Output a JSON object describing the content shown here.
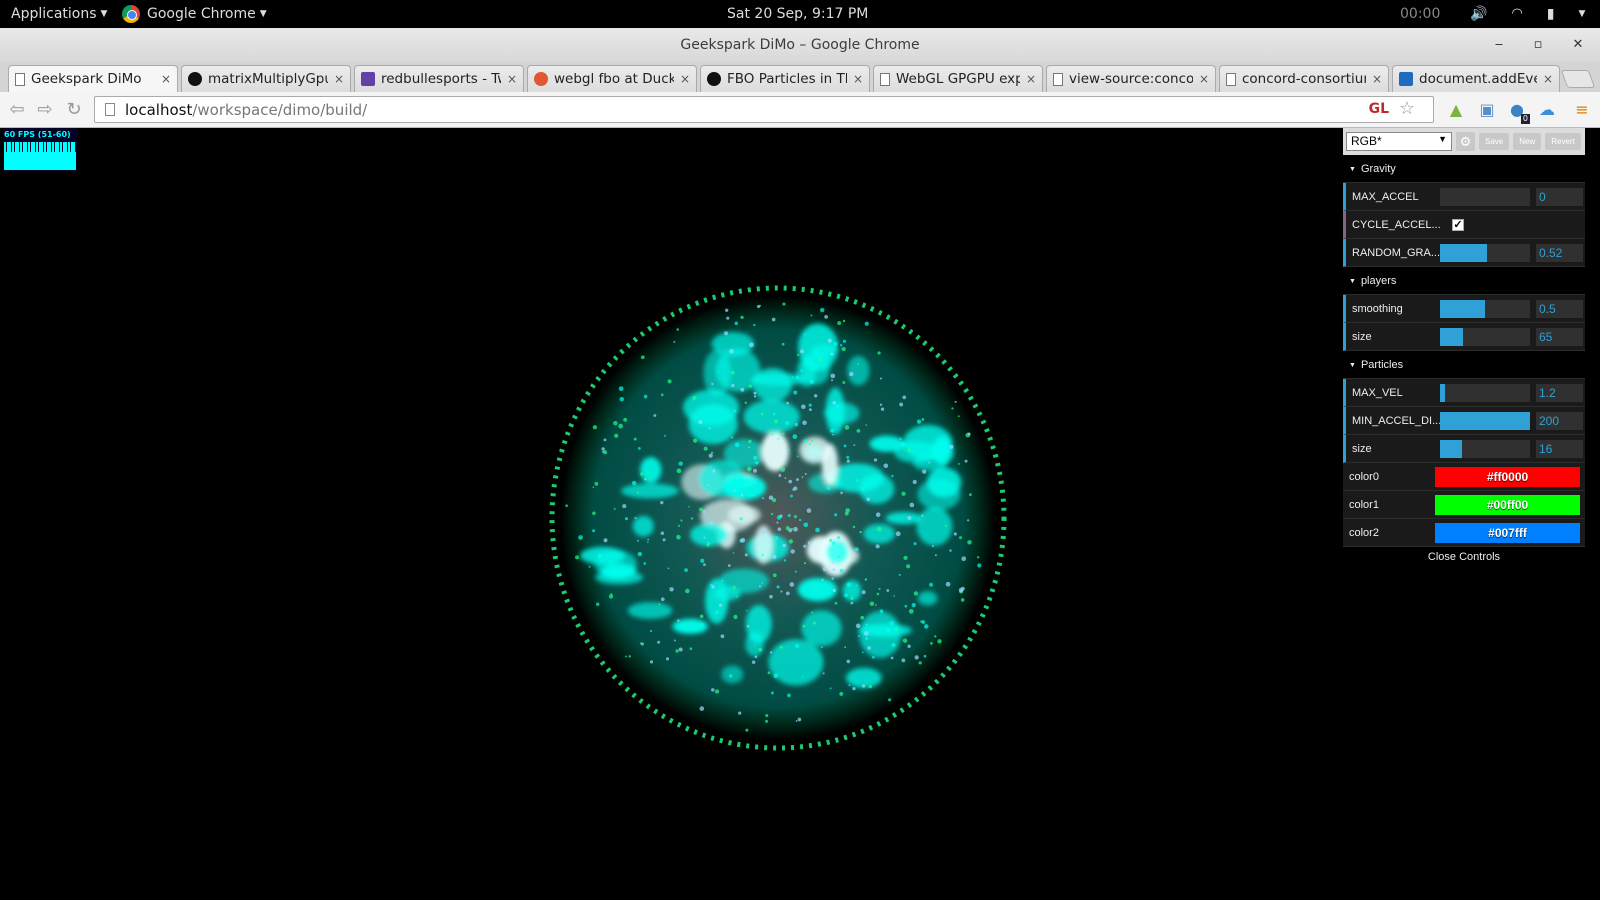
{
  "topbar": {
    "applications_label": "Applications",
    "chrome_menu_label": "Google Chrome",
    "clock": "Sat 20 Sep,  9:17 PM",
    "timer": "00:00"
  },
  "window": {
    "title": "Geekspark DiMo – Google Chrome",
    "minimize": "‒",
    "maximize": "▫",
    "close": "✕"
  },
  "tabs": [
    {
      "title": "Geekspark DiMo",
      "favicon": "document-icon",
      "active": true
    },
    {
      "title": "matrixMultiplyGpu",
      "favicon": "github-icon"
    },
    {
      "title": "redbullesports - Tw",
      "favicon": "twitch-icon"
    },
    {
      "title": "webgl fbo at Duck",
      "favicon": "duckduckgo-icon"
    },
    {
      "title": "FBO Particles in Th",
      "favicon": "github-icon"
    },
    {
      "title": "WebGL GPGPU exp",
      "favicon": "document-icon"
    },
    {
      "title": "view-source:concor",
      "favicon": "document-icon"
    },
    {
      "title": "concord-consortium",
      "favicon": "document-icon"
    },
    {
      "title": "document.addEven",
      "favicon": "mdn-icon"
    }
  ],
  "tab_close_glyph": "×",
  "address_bar": {
    "host": "localhost",
    "path": "/workspace/dimo/build/",
    "gl_badge": "GL"
  },
  "extensions": {
    "badge_count": "0"
  },
  "stats": {
    "fps_text": "60 FPS (51-60)"
  },
  "gui": {
    "preset": "RGB*",
    "save_label": "Save",
    "new_label": "New",
    "revert_label": "Revert",
    "folders": {
      "gravity": "Gravity",
      "players": "players",
      "particles": "Particles"
    },
    "gravity": {
      "max_accel": {
        "label": "MAX_ACCEL",
        "value": "0",
        "fraction": 0
      },
      "cycle_accel": {
        "label": "CYCLE_ACCEL...",
        "checked": true
      },
      "random_gra": {
        "label": "RANDOM_GRA...",
        "value": "0.52",
        "fraction": 0.52
      }
    },
    "players": {
      "smoothing": {
        "label": "smoothing",
        "value": "0.5",
        "fraction": 0.5
      },
      "size": {
        "label": "size",
        "value": "65",
        "fraction": 0.25
      }
    },
    "particles": {
      "max_vel": {
        "label": "MAX_VEL",
        "value": "1.2",
        "fraction": 0.06
      },
      "min_accel_di": {
        "label": "MIN_ACCEL_DI...",
        "value": "200",
        "fraction": 1.0
      },
      "size": {
        "label": "size",
        "value": "16",
        "fraction": 0.24
      },
      "color0": {
        "label": "color0",
        "value": "#ff0000"
      },
      "color1": {
        "label": "color1",
        "value": "#00ff00"
      },
      "color2": {
        "label": "color2",
        "value": "#007fff"
      }
    },
    "close_label": "Close Controls"
  },
  "colors": {
    "slider_accent": "#2fa1d6",
    "particle_cyan": "#00ffee",
    "particle_green": "#22ff88"
  }
}
